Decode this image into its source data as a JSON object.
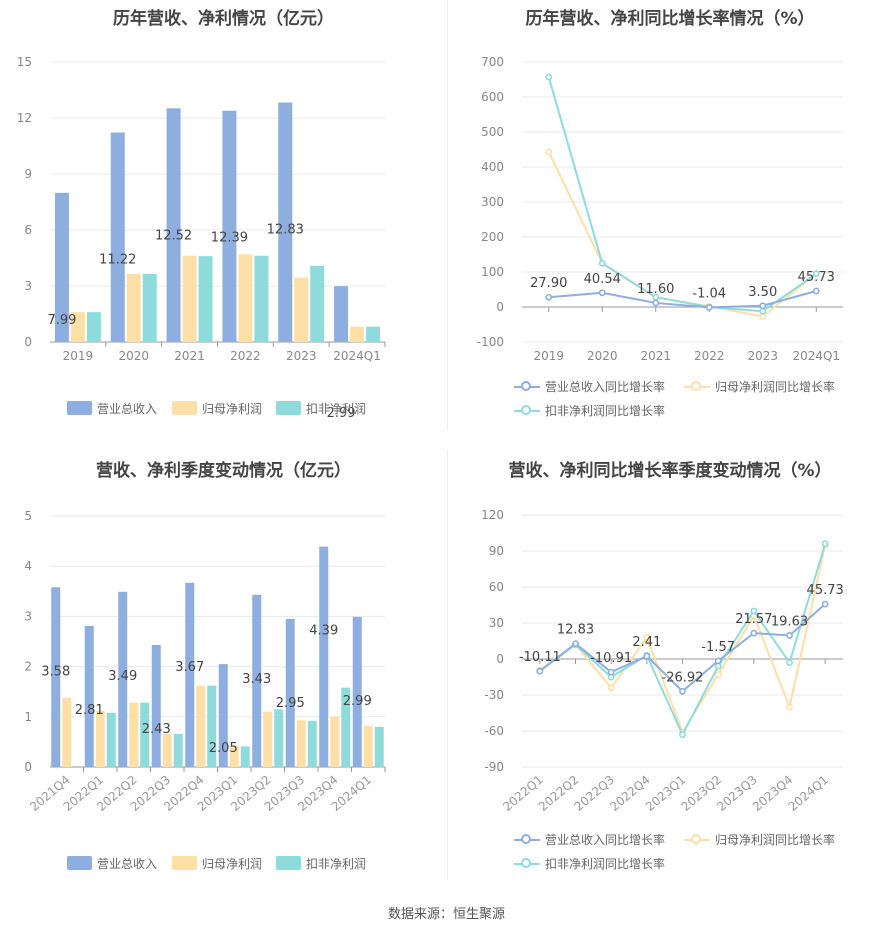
{
  "colors": {
    "revenue": "#8eaee0",
    "net_profit": "#fddfa7",
    "deducted": "#8fdbdb",
    "rev_line": "#8eaee0",
    "np_line": "#fddfa7",
    "ded_line": "#8fdbdb"
  },
  "source": "数据来源：恒生聚源",
  "charts": [
    {
      "title": "历年营收、净利情况（亿元）",
      "chart_data": {
        "type": "bar",
        "categories": [
          "2019",
          "2020",
          "2021",
          "2022",
          "2023",
          "2024Q1"
        ],
        "ylim": [
          0,
          15
        ],
        "yticks": [
          "0",
          "3",
          "6",
          "9",
          "12",
          "15"
        ],
        "series": [
          {
            "name": "营业总收入",
            "values": [
              7.99,
              11.22,
              12.52,
              12.39,
              12.83,
              2.99
            ],
            "labels": [
              "7.99",
              "11.22",
              "12.52",
              "12.39",
              "12.83",
              "2.99"
            ]
          },
          {
            "name": "归母净利润",
            "values": [
              1.6,
              3.65,
              4.62,
              4.7,
              3.45,
              0.82
            ]
          },
          {
            "name": "扣非净利润",
            "values": [
              1.6,
              3.65,
              4.6,
              4.62,
              4.08,
              0.82
            ]
          }
        ],
        "legend": "bottom"
      }
    },
    {
      "title": "历年营收、净利同比增长率情况（%）",
      "chart_data": {
        "type": "line",
        "categories": [
          "2019",
          "2020",
          "2021",
          "2022",
          "2023",
          "2024Q1"
        ],
        "ylim": [
          -100,
          700
        ],
        "yticks": [
          "-100",
          "0",
          "100",
          "200",
          "300",
          "400",
          "500",
          "600",
          "700"
        ],
        "series": [
          {
            "name": "营业总收入同比增长率",
            "values": [
              27.9,
              40.54,
              11.6,
              -1.04,
              3.5,
              45.73
            ],
            "labels": [
              "27.90",
              "40.54",
              "11.60",
              "-1.04",
              "3.50",
              "45.73"
            ]
          },
          {
            "name": "归母净利润同比增长率",
            "values": [
              443,
              125,
              28,
              2,
              -27,
              95
            ]
          },
          {
            "name": "扣非净利润同比增长率",
            "values": [
              657,
              125,
              28,
              0,
              -12,
              95
            ]
          }
        ],
        "legend": "bottom"
      }
    },
    {
      "title": "营收、净利季度变动情况（亿元）",
      "chart_data": {
        "type": "bar",
        "categories": [
          "2021Q4",
          "2022Q1",
          "2022Q2",
          "2022Q3",
          "2022Q4",
          "2023Q1",
          "2023Q2",
          "2023Q3",
          "2023Q4",
          "2024Q1"
        ],
        "ylim": [
          0,
          5
        ],
        "yticks": [
          "0",
          "1",
          "2",
          "3",
          "4",
          "5"
        ],
        "series": [
          {
            "name": "营业总收入",
            "values": [
              3.58,
              2.81,
              3.49,
              2.43,
              3.67,
              2.05,
              3.43,
              2.95,
              4.39,
              2.99
            ],
            "labels": [
              "3.58",
              "2.81",
              "3.49",
              "2.43",
              "3.67",
              "2.05",
              "3.43",
              "2.95",
              "4.39",
              "2.99"
            ]
          },
          {
            "name": "归母净利润",
            "values": [
              1.38,
              1.12,
              1.28,
              0.66,
              1.62,
              0.42,
              1.1,
              0.93,
              1.0,
              0.82
            ]
          },
          {
            "name": "扣非净利润",
            "values": [
              0,
              1.08,
              1.28,
              0.66,
              1.62,
              0.41,
              1.15,
              0.92,
              1.58,
              0.8
            ]
          }
        ],
        "legend": "bottom"
      }
    },
    {
      "title": "营收、净利同比增长率季度变动情况（%）",
      "chart_data": {
        "type": "line",
        "categories": [
          "2022Q1",
          "2022Q2",
          "2022Q3",
          "2022Q4",
          "2023Q1",
          "2023Q2",
          "2023Q3",
          "2023Q4",
          "2024Q1"
        ],
        "ylim": [
          -90,
          120
        ],
        "yticks": [
          "-90",
          "-60",
          "-30",
          "0",
          "30",
          "60",
          "90",
          "120"
        ],
        "series": [
          {
            "name": "营业总收入同比增长率",
            "values": [
              -10.11,
              12.83,
              -10.91,
              2.41,
              -26.92,
              -1.57,
              21.57,
              19.63,
              45.73
            ],
            "labels": [
              "-10.11",
              "12.83",
              "-10.91",
              "2.41",
              "-26.92",
              "-1.57",
              "21.57",
              "19.63",
              "45.73"
            ]
          },
          {
            "name": "归母净利润同比增长率",
            "values": [
              -9,
              12,
              -24,
              18,
              -61,
              -13,
              36,
              -40,
              95
            ]
          },
          {
            "name": "扣非净利润同比增长率",
            "values": [
              -10,
              12,
              -15,
              3,
              -63,
              -6,
              40,
              -3,
              96
            ]
          }
        ],
        "legend": "bottom"
      }
    }
  ]
}
